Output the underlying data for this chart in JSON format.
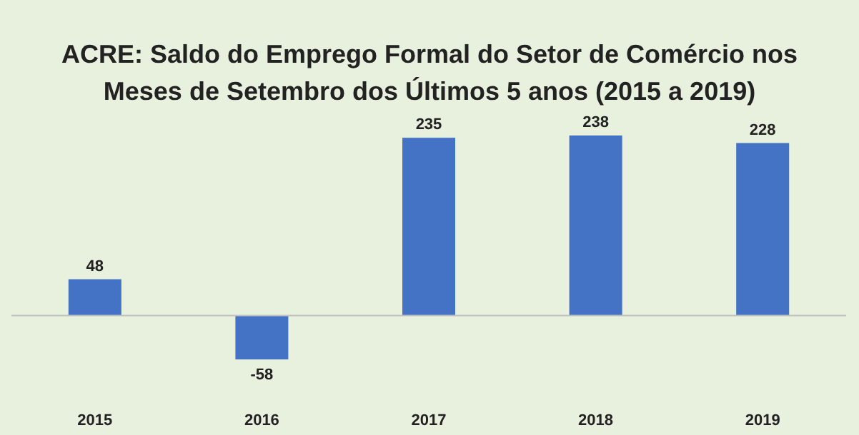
{
  "chart_data": {
    "type": "bar",
    "title": "ACRE: Saldo do Emprego Formal do Setor de Comércio nos Meses de Setembro dos Últimos 5 anos (2015 a 2019)",
    "categories": [
      "2015",
      "2016",
      "2017",
      "2018",
      "2019"
    ],
    "values": [
      48,
      -58,
      235,
      238,
      228
    ],
    "color": "#4472c4",
    "data_labels": true
  }
}
